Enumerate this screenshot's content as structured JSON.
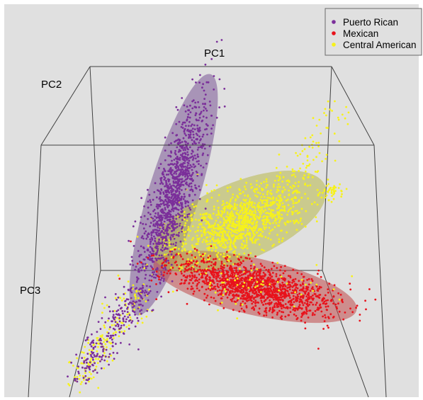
{
  "chart_data": {
    "type": "scatter",
    "subtype": "3d-pca",
    "title": "",
    "axes": {
      "x": "PC1",
      "y": "PC2",
      "z": "PC3"
    },
    "legend_position": "top-right",
    "background": "#e0e0e0",
    "series": [
      {
        "name": "Puerto Rican",
        "color": "#7b2f9a",
        "ellipse_color": "#7a5596",
        "points_shown": "approx 1200",
        "centroid": [
          -0.62,
          0.9,
          -0.15
        ],
        "spread": [
          0.12,
          0.55,
          0.12
        ]
      },
      {
        "name": "Mexican",
        "color": "#e8121b",
        "ellipse_color": "#c04848",
        "points_shown": "approx 1500",
        "centroid": [
          0.28,
          -0.35,
          0.35
        ],
        "spread": [
          0.45,
          0.12,
          0.2
        ]
      },
      {
        "name": "Central American",
        "color": "#f7f21a",
        "ellipse_color": "#b8b84a",
        "points_shown": "approx 1100",
        "centroid": [
          0.12,
          0.3,
          -0.2
        ],
        "spread": [
          0.45,
          0.18,
          0.2
        ]
      }
    ]
  }
}
